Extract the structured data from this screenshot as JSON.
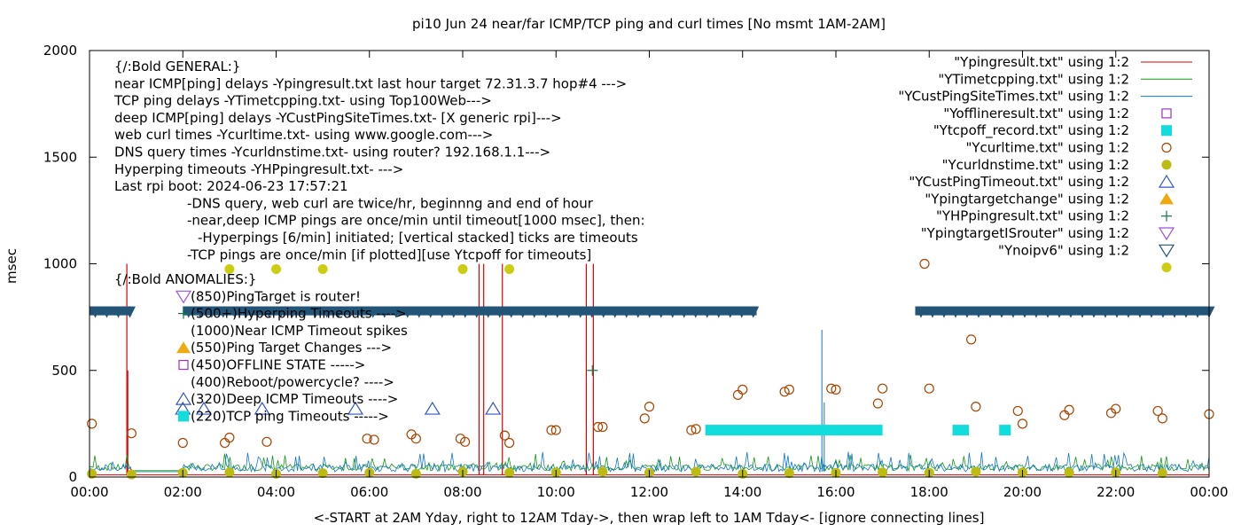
{
  "chart_data": {
    "type": "scatter",
    "title": "pi10 Jun 24  near/far ICMP/TCP ping and curl times [No msmt 1AM-2AM]",
    "xlabel": "<-START at 2AM Yday, right to 12AM Tday->, then wrap left to 1AM Tday<- [ignore connecting lines]",
    "ylabel": "msec",
    "xlim": [
      0,
      24
    ],
    "ylim": [
      0,
      2000
    ],
    "grid": false,
    "legend_position": "top-right",
    "x_tick_labels": [
      "00:00",
      "02:00",
      "04:00",
      "06:00",
      "08:00",
      "10:00",
      "12:00",
      "14:00",
      "16:00",
      "18:00",
      "20:00",
      "22:00",
      "00:00"
    ],
    "y_tick_labels": [
      "0",
      "500",
      "1000",
      "1500",
      "2000"
    ],
    "legend": [
      {
        "label": "\"Ypingresult.txt\" using 1:2",
        "marker": "line",
        "color": "#dd0000"
      },
      {
        "label": "\"YTimetcpping.txt\" using 1:2",
        "marker": "line",
        "color": "#119911"
      },
      {
        "label": "\"YCustPingSiteTimes.txt\" using 1:2",
        "marker": "line",
        "color": "#1177cc"
      },
      {
        "label": "\"Yofflineresult.txt\" using 1:2",
        "marker": "open-square",
        "color": "#9933cc"
      },
      {
        "label": "\"Ytcpoff_record.txt\" using 1:2",
        "marker": "filled-square",
        "color": "#11dddd"
      },
      {
        "label": "\"Ycurltime.txt\" using 1:2",
        "marker": "open-circle",
        "color": "#aa4400"
      },
      {
        "label": "\"Ycurldnstime.txt\" using 1:2",
        "marker": "filled-circle",
        "color": "#bbbb11"
      },
      {
        "label": "\"YCustPingTimeout.txt\" using 1:2",
        "marker": "open-triangle-up",
        "color": "#3355cc"
      },
      {
        "label": "\"Ypingtargetchange\" using 1:2",
        "marker": "filled-triangle-up",
        "color": "#eeaa11"
      },
      {
        "label": "\"YHPpingresult.txt\" using 1:2",
        "marker": "plus",
        "color": "#117744"
      },
      {
        "label": "\"YpingtargetISrouter\" using 1:2",
        "marker": "open-triangle-down",
        "color": "#9955dd"
      },
      {
        "label": "\"Ynoipv6\" using 1:2",
        "marker": "open-triangle-down",
        "color": "#225577"
      },
      {
        "label": "",
        "marker": "filled-circle",
        "color": "#cccc11"
      }
    ],
    "annotations": [
      "{/:Bold GENERAL:}",
      "near ICMP[ping] delays -Ypingresult.txt last hour target 72.31.3.7 hop#4 --->",
      "TCP ping delays -YTimetcpping.txt- using Top100Web--->",
      "deep ICMP[ping] delays -YCustPingSiteTimes.txt- [X generic rpi]--->",
      "web curl times -Ycurltime.txt- using www.google.com--->",
      "DNS query times -Ycurldnstime.txt- using router? 192.168.1.1--->",
      "Hyperping timeouts -YHPpingresult.txt- --->",
      "Last rpi boot: 2024-06-23 17:57:21",
      "-DNS query, web curl are twice/hr, beginnng and end of hour",
      "-near,deep ICMP pings are once/min until timeout[1000 msec], then:",
      "-Hyperpings [6/min] initiated; [vertical stacked] ticks are timeouts",
      "-TCP pings are once/min [if plotted][use Ytcpoff for timeouts]",
      "{/:Bold ANOMALIES:}",
      "(850)PingTarget is router!",
      "(500+)Hyperping Timeouts ---->",
      "(1000)Near ICMP Timeout spikes",
      "(550)Ping Target Changes --->",
      "(450)OFFLINE STATE ----->",
      "(400)Reboot/powercycle? ---->",
      "(320)Deep ICMP Timeouts ---->",
      "(220)TCP ping Timeouts ----->"
    ],
    "series": [
      {
        "name": "\"Ypingresult.txt\" using 1:2",
        "kind": "spikes",
        "color": "#dd0000",
        "baseline": 10,
        "spikes_x": [
          0.8,
          0.82,
          8.35,
          8.45,
          8.85,
          10.65,
          10.8
        ],
        "spikes_y": [
          1000,
          500,
          1000,
          1000,
          1000,
          1000,
          1000
        ]
      },
      {
        "name": "\"YTimetcpping.txt\" using 1:2",
        "kind": "noise",
        "color": "#119911",
        "base": 30,
        "amp": 50
      },
      {
        "name": "\"YCustPingSiteTimes.txt\" using 1:2",
        "kind": "noise",
        "color": "#1177cc",
        "base": 25,
        "amp": 60,
        "spikes_x": [
          15.7,
          15.75
        ],
        "spikes_y": [
          690,
          350
        ]
      },
      {
        "name": "\"Ycurltime.txt\" using 1:2",
        "kind": "points",
        "marker": "open-circle",
        "color": "#aa4400",
        "x": [
          0.05,
          0.9,
          2.0,
          2.9,
          3.0,
          3.8,
          5.95,
          6.1,
          6.9,
          7.0,
          7.95,
          8.05,
          8.9,
          9.0,
          9.9,
          10.0,
          10.9,
          11.0,
          11.9,
          12.0,
          12.9,
          13.0,
          13.9,
          14.0,
          14.9,
          15.0,
          15.9,
          16.0,
          16.9,
          17.0,
          17.9,
          18.0,
          18.9,
          19.0,
          19.9,
          20.0,
          20.9,
          21.0,
          21.9,
          22.0,
          22.9,
          23.0,
          24.0
        ],
        "y": [
          250,
          205,
          160,
          160,
          185,
          165,
          180,
          175,
          200,
          180,
          180,
          165,
          195,
          160,
          220,
          220,
          235,
          235,
          275,
          330,
          220,
          225,
          385,
          410,
          400,
          410,
          415,
          410,
          345,
          415,
          1000,
          415,
          645,
          330,
          310,
          250,
          290,
          315,
          300,
          320,
          310,
          275,
          295
        ]
      },
      {
        "name": "\"Ycurldnstime.txt\" using 1:2",
        "kind": "points",
        "marker": "filled-circle",
        "color": "#bbbb11",
        "x": [
          0.05,
          0.9,
          2.0,
          3.0,
          4.0,
          5.0,
          6.0,
          7.0,
          8.0,
          9.0,
          10.0,
          11.0,
          12.0,
          13.0,
          14.0,
          15.0,
          16.0,
          17.0,
          18.0,
          19.0,
          20.0,
          21.0,
          22.0,
          23.0
        ],
        "y": [
          15,
          12,
          20,
          22,
          15,
          18,
          20,
          15,
          25,
          20,
          22,
          25,
          20,
          25,
          15,
          18,
          20,
          22,
          20,
          25,
          22,
          20,
          22,
          18
        ]
      },
      {
        "name": "\"Ycurldnstime.txt\" upper",
        "kind": "points",
        "marker": "filled-circle",
        "color": "#cccc11",
        "x": [
          3.0,
          4.0,
          5.0,
          8.0,
          9.0
        ],
        "y": [
          975,
          975,
          975,
          975,
          975
        ]
      },
      {
        "name": "\"YCustPingTimeout.txt\" using 1:2",
        "kind": "points",
        "marker": "open-triangle-up",
        "color": "#3355cc",
        "x": [
          2.0,
          2.45,
          3.7,
          5.7,
          7.35,
          8.65
        ],
        "y": [
          320,
          320,
          320,
          320,
          320,
          320
        ]
      },
      {
        "name": "\"YHPpingresult.txt\" using 1:2",
        "kind": "points",
        "marker": "plus",
        "color": "#117744",
        "x": [
          10.78
        ],
        "y": [
          500
        ]
      },
      {
        "name": "\"Ytcpoff_record.txt\" using 1:2",
        "kind": "bars",
        "color": "#11dddd",
        "segments": [
          [
            13.2,
            17.0
          ],
          [
            18.5,
            18.85
          ],
          [
            19.5,
            19.75
          ]
        ],
        "y": 220
      },
      {
        "name": "\"Ynoipv6\" using 1:2",
        "kind": "band",
        "color": "#225577",
        "segments": [
          [
            0.0,
            0.9
          ],
          [
            2.0,
            14.3
          ],
          [
            17.7,
            24.0
          ]
        ],
        "y": 775
      }
    ]
  }
}
